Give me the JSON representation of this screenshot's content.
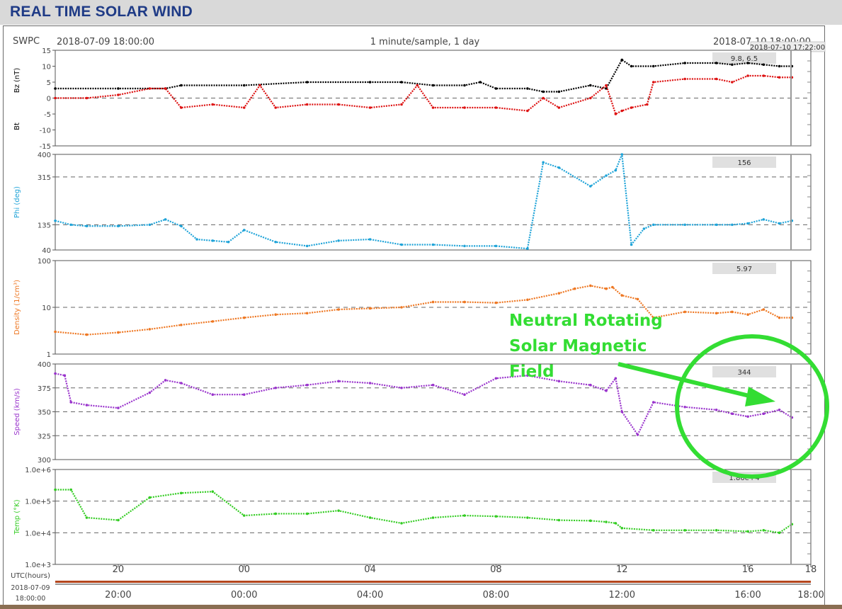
{
  "app": {
    "title": "REAL TIME SOLAR WIND"
  },
  "header": {
    "source": "SWPC",
    "start_time": "2018-07-09 18:00:00",
    "center_label": "1 minute/sample, 1 day",
    "end_time": "2018-07-10 18:00:00",
    "cursor_time": "2018-07-10 17:22:00"
  },
  "annotation": {
    "lines": [
      "Neutral Rotating",
      "Solar Magnetic",
      "Field"
    ],
    "color": "#33dd33"
  },
  "chart_data": [
    {
      "type": "scatter",
      "panel": "bz_bt",
      "ylabel": "Bz (nT)",
      "ylabel2": "Bt",
      "ylim": [
        -15,
        15
      ],
      "yticks": [
        "15",
        "10",
        "5",
        "0",
        "-5",
        "-10",
        "-15"
      ],
      "ytick_values": [
        15,
        10,
        5,
        0,
        -5,
        -10,
        -15
      ],
      "readout": "9.8, 6.5",
      "series": [
        {
          "color": "#000000",
          "x": [
            0,
            2,
            3.5,
            4,
            6,
            8,
            10,
            11,
            12,
            13,
            13.5,
            14,
            15,
            15.5,
            16,
            17,
            17.5,
            18,
            18.3,
            19,
            20,
            21,
            21.5,
            22,
            22.5,
            23,
            23.4
          ],
          "y": [
            3,
            3,
            3,
            4,
            4,
            5,
            5,
            5,
            4,
            4,
            5,
            3,
            3,
            2,
            2,
            4,
            3,
            12,
            10,
            10,
            11,
            11,
            10.5,
            11,
            10.5,
            10,
            10
          ]
        },
        {
          "color": "#dd1111",
          "x": [
            0,
            1,
            2,
            3,
            3.5,
            4,
            5,
            6,
            6.5,
            7,
            8,
            9,
            10,
            11,
            11.5,
            12,
            13,
            14,
            15,
            15.5,
            16,
            17,
            17.5,
            17.8,
            18,
            18.3,
            18.8,
            19,
            20,
            21,
            21.5,
            22,
            22.5,
            23,
            23.4
          ],
          "y": [
            0,
            0,
            1,
            3,
            3,
            -3,
            -2,
            -3,
            4,
            -3,
            -2,
            -2,
            -3,
            -2,
            4,
            -3,
            -3,
            -3,
            -4,
            0,
            -3,
            0,
            4,
            -5,
            -4,
            -3,
            -2,
            5,
            6,
            6,
            5,
            7,
            7,
            6.5,
            6.5
          ]
        }
      ]
    },
    {
      "type": "scatter",
      "panel": "phi",
      "ylabel": "Phi (deg)",
      "ylim": [
        40,
        400
      ],
      "yticks": [
        "400",
        "315",
        "135",
        "40"
      ],
      "ytick_values": [
        400,
        315,
        135,
        40
      ],
      "readout": "156",
      "series": [
        {
          "color": "#1ea3d8",
          "x": [
            0,
            0.5,
            1,
            2,
            3,
            3.5,
            4,
            4.5,
            5,
            5.5,
            6,
            7,
            8,
            9,
            10,
            11,
            12,
            13,
            14,
            15,
            15.5,
            16,
            17,
            17.5,
            17.8,
            18,
            18.3,
            18.7,
            19,
            20,
            21,
            21.5,
            22,
            22.5,
            23,
            23.4
          ],
          "y": [
            150,
            135,
            130,
            130,
            135,
            155,
            130,
            80,
            75,
            70,
            115,
            70,
            55,
            75,
            80,
            60,
            60,
            55,
            55,
            45,
            370,
            350,
            280,
            320,
            340,
            400,
            60,
            120,
            135,
            135,
            135,
            135,
            140,
            155,
            140,
            150
          ]
        }
      ]
    },
    {
      "type": "scatter",
      "panel": "density",
      "ylabel": "Density (1/cm³)",
      "yscale": "log",
      "ylim": [
        1,
        100
      ],
      "yticks": [
        "100",
        "10",
        "1"
      ],
      "ytick_values": [
        100,
        10,
        1
      ],
      "readout": "5.97",
      "series": [
        {
          "color": "#ee7722",
          "x": [
            0,
            1,
            2,
            3,
            4,
            5,
            6,
            7,
            8,
            9,
            10,
            11,
            12,
            13,
            14,
            15,
            16,
            16.5,
            17,
            17.5,
            17.7,
            18,
            18.5,
            19,
            20,
            21,
            21.5,
            22,
            22.5,
            23,
            23.4
          ],
          "y": [
            3,
            2.6,
            2.9,
            3.4,
            4.2,
            5,
            6,
            7,
            7.5,
            9,
            9.5,
            10,
            13,
            13,
            12.5,
            14.5,
            20,
            25,
            29,
            25,
            27,
            18,
            15,
            6,
            8,
            7.5,
            8,
            7,
            9,
            6,
            6
          ]
        }
      ]
    },
    {
      "type": "scatter",
      "panel": "speed",
      "ylabel": "Speed (km/s)",
      "ylim": [
        300,
        400
      ],
      "yticks": [
        "400",
        "375",
        "350",
        "325",
        "300"
      ],
      "ytick_values": [
        400,
        375,
        350,
        325,
        300
      ],
      "readout": "344",
      "series": [
        {
          "color": "#9933cc",
          "x": [
            0,
            0.3,
            0.5,
            1,
            2,
            3,
            3.5,
            4,
            5,
            6,
            7,
            8,
            9,
            10,
            11,
            12,
            13,
            14,
            15,
            16,
            17,
            17.5,
            17.8,
            18,
            18.5,
            19,
            20,
            21,
            21.5,
            22,
            22.5,
            23,
            23.4
          ],
          "y": [
            390,
            388,
            360,
            357,
            354,
            370,
            383,
            380,
            368,
            368,
            375,
            378,
            382,
            380,
            375,
            378,
            368,
            385,
            388,
            382,
            378,
            372,
            385,
            350,
            326,
            360,
            355,
            352,
            348,
            345,
            348,
            352,
            344
          ]
        }
      ]
    },
    {
      "type": "scatter",
      "panel": "temp",
      "ylabel": "Temp (°K)",
      "yscale": "log",
      "ylim": [
        1000,
        1000000
      ],
      "yticks": [
        "1.0e+6",
        "1.0e+5",
        "1.0e+4",
        "1.0e+3"
      ],
      "ytick_values": [
        1000000,
        100000,
        10000,
        1000
      ],
      "readout": "1.86e+4",
      "series": [
        {
          "color": "#33cc22",
          "x": [
            0,
            0.5,
            1,
            2,
            3,
            4,
            5,
            6,
            7,
            8,
            9,
            10,
            11,
            12,
            13,
            14,
            15,
            16,
            17,
            17.5,
            17.8,
            18,
            19,
            20,
            21,
            22,
            22.5,
            23,
            23.4
          ],
          "y": [
            230000,
            230000,
            30000,
            25000,
            130000,
            180000,
            200000,
            35000,
            40000,
            40000,
            50000,
            30000,
            20000,
            30000,
            35000,
            33000,
            30000,
            25000,
            24000,
            22000,
            20000,
            14000,
            12000,
            12000,
            12000,
            11000,
            12000,
            10000,
            18600
          ]
        }
      ]
    },
    {
      "type": "line",
      "panel": "time_axis",
      "x_tick_labels_top": [
        "20",
        "00",
        "04",
        "08",
        "12",
        "16",
        "18"
      ],
      "x_tick_labels_bottom": [
        "20:00",
        "00:00",
        "04:00",
        "08:00",
        "12:00",
        "16:00",
        "18:00"
      ],
      "x_tick_values": [
        2,
        6,
        10,
        14,
        18,
        22,
        24
      ],
      "xlabel": "UTC(hours)",
      "start_label_date": "2018-07-09",
      "start_label_time": "18:00:00",
      "xlim": [
        0,
        24
      ],
      "cursor_x": 23.37
    }
  ]
}
